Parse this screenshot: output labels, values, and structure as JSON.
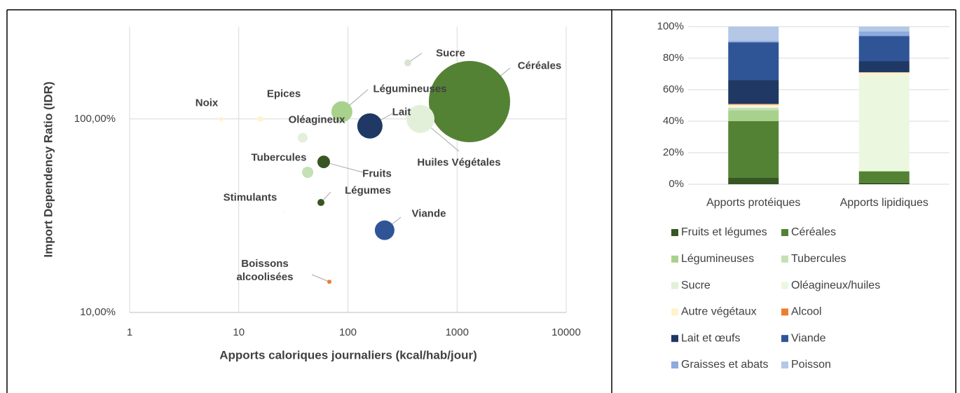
{
  "chart_data": [
    {
      "type": "bubble",
      "ylabel": "Import Dependency Ratio (IDR)",
      "xlabel": "Apports caloriques journaliers (kcal/hab/jour)",
      "x_log": true,
      "y_log": true,
      "xlim": [
        1,
        10000
      ],
      "ylim": [
        10,
        300
      ],
      "xticks": [
        1,
        10,
        100,
        1000,
        10000
      ],
      "yticks": [
        {
          "value": 10,
          "label": "10,00%"
        },
        {
          "value": 100,
          "label": "100,00%"
        }
      ],
      "grid": true,
      "labels": [
        "Céréales",
        "Huiles Végétales",
        "Lait",
        "Légumineuses",
        "Viande",
        "Sucre",
        "Oléagineux",
        "Fruits",
        "Tubercules",
        "Légumes",
        "Noix",
        "Epices",
        "Stimulants",
        "Boissons alcoolisées"
      ],
      "x": [
        1300,
        462,
        159,
        88,
        217,
        354,
        38.5,
        60,
        42.8,
        56.6,
        6.9,
        15.8,
        25.9,
        67.6
      ],
      "values": [
        123,
        100,
        92,
        109,
        26.6,
        195,
        80,
        60,
        53,
        37,
        100,
        100,
        33.3,
        14.4
      ],
      "sizes": [
        3364,
        400,
        324,
        225,
        196,
        25,
        49,
        81,
        64,
        25,
        9,
        16,
        1,
        9
      ],
      "colors": [
        "#548235",
        "#e2f0d9",
        "#1f3864",
        "#a9d18e",
        "#2f5597",
        "#d9e5d0",
        "#e2f0d9",
        "#375623",
        "#c5e0b4",
        "#375623",
        "#fff2cc",
        "#fff2cc",
        "#fff2cc",
        "#ed7d31"
      ]
    },
    {
      "type": "stacked_bar",
      "categories": [
        "Apports protéiques",
        "Apports lipidiques"
      ],
      "ylim": [
        0,
        100
      ],
      "yticks": [
        {
          "value": 0,
          "label": "0%"
        },
        {
          "value": 20,
          "label": "20%"
        },
        {
          "value": 40,
          "label": "40%"
        },
        {
          "value": 60,
          "label": "60%"
        },
        {
          "value": 80,
          "label": "80%"
        },
        {
          "value": 100,
          "label": "100%"
        }
      ],
      "grid": true,
      "legend": "bottom",
      "series": [
        {
          "name": "Fruits et légumes",
          "color": "#375623",
          "values": [
            4,
            1
          ]
        },
        {
          "name": "Céréales",
          "color": "#548235",
          "values": [
            36,
            7
          ]
        },
        {
          "name": "Légumineuses",
          "color": "#a9d18e",
          "values": [
            7,
            0.5
          ]
        },
        {
          "name": "Tubercules",
          "color": "#c5e0b4",
          "values": [
            1.5,
            0
          ]
        },
        {
          "name": "Sucre",
          "color": "#e2f0d9",
          "values": [
            0,
            0
          ]
        },
        {
          "name": "Oléagineux/huiles",
          "color": "#ebf7df",
          "values": [
            1,
            60.5
          ]
        },
        {
          "name": "Autre végétaux",
          "color": "#fff2cc",
          "values": [
            1,
            2
          ]
        },
        {
          "name": "Alcool",
          "color": "#ed7d31",
          "values": [
            0.5,
            0
          ]
        },
        {
          "name": "Lait et œufs",
          "color": "#1f3864",
          "values": [
            15,
            7
          ]
        },
        {
          "name": "Viande",
          "color": "#2f5597",
          "values": [
            24,
            16
          ]
        },
        {
          "name": "Graisses et abats",
          "color": "#8faadc",
          "values": [
            1,
            3
          ]
        },
        {
          "name": "Poisson",
          "color": "#b4c7e7",
          "values": [
            9,
            3
          ]
        }
      ]
    }
  ]
}
